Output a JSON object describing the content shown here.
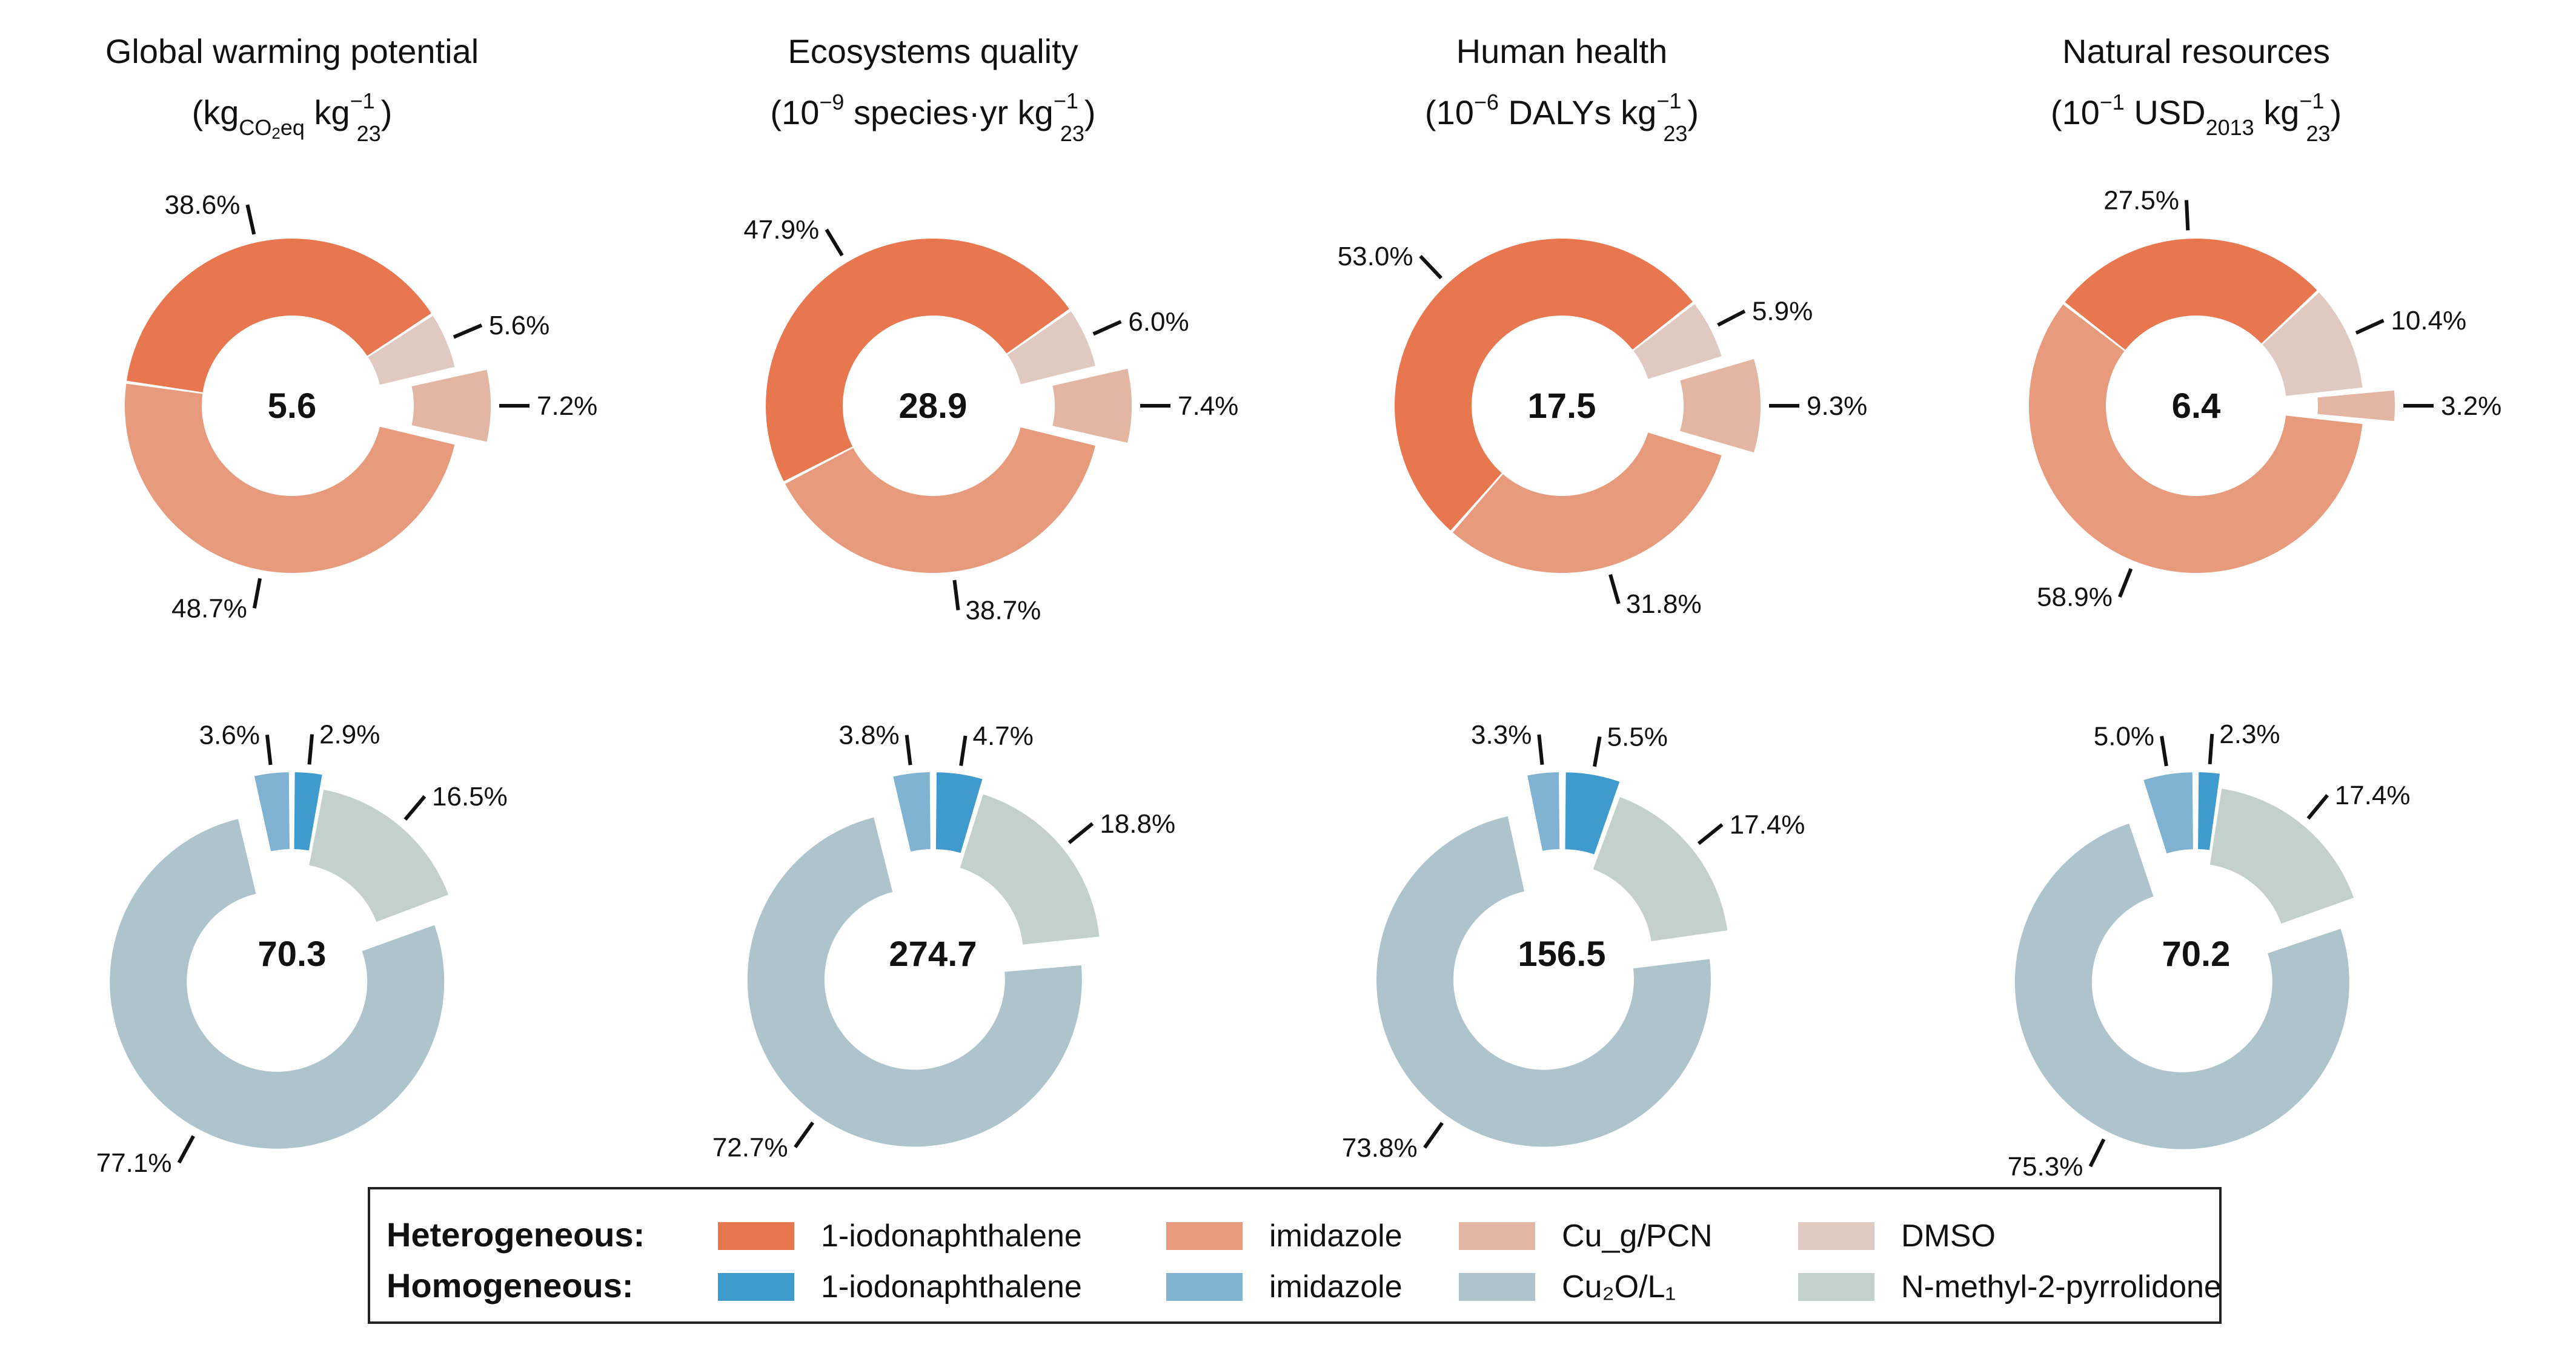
{
  "chart_data": [
    {
      "type": "donut",
      "title": "Global warming potential",
      "unit": {
        "pre": "(kg",
        "sub1": "CO",
        "sub1b": "2",
        "sub1c": "eq",
        "mid": " kg",
        "sup": "−1",
        "sub2": "23",
        "post": ")"
      },
      "panels": [
        {
          "group": "Heterogeneous",
          "total": "5.6",
          "slices": [
            {
              "name": "1-iodonaphthalene",
              "value": 38.6,
              "label": "38.6%"
            },
            {
              "name": "imidazole",
              "value": 48.7,
              "label": "48.7%"
            },
            {
              "name": "Cug/PCN",
              "value": 7.2,
              "label": "7.2%",
              "exploded": true
            },
            {
              "name": "DMSO",
              "value": 5.6,
              "label": "5.6%"
            }
          ]
        },
        {
          "group": "Homogeneous",
          "total": "70.3",
          "slices": [
            {
              "name": "1-iodonaphthalene",
              "value": 2.9,
              "label": "2.9%"
            },
            {
              "name": "imidazole",
              "value": 3.6,
              "label": "3.6%"
            },
            {
              "name": "Cu2O/L1",
              "value": 77.1,
              "label": "77.1%",
              "exploded": true
            },
            {
              "name": "N-methyl-2-pyrrolidone",
              "value": 16.5,
              "label": "16.5%"
            }
          ]
        }
      ]
    },
    {
      "type": "donut",
      "title": "Ecosystems quality",
      "unit": {
        "pre": "(10",
        "presup": "−9",
        "mid": " species·yr kg",
        "sup": "−1",
        "sub2": "23",
        "post": ")"
      },
      "panels": [
        {
          "group": "Heterogeneous",
          "total": "28.9",
          "slices": [
            {
              "name": "1-iodonaphthalene",
              "value": 47.9,
              "label": "47.9%"
            },
            {
              "name": "imidazole",
              "value": 38.7,
              "label": "38.7%"
            },
            {
              "name": "Cug/PCN",
              "value": 7.4,
              "label": "7.4%",
              "exploded": true
            },
            {
              "name": "DMSO",
              "value": 6.0,
              "label": "6.0%"
            }
          ]
        },
        {
          "group": "Homogeneous",
          "total": "274.7",
          "slices": [
            {
              "name": "1-iodonaphthalene",
              "value": 4.7,
              "label": "4.7%"
            },
            {
              "name": "imidazole",
              "value": 3.8,
              "label": "3.8%"
            },
            {
              "name": "Cu2O/L1",
              "value": 72.7,
              "label": "72.7%",
              "exploded": true
            },
            {
              "name": "N-methyl-2-pyrrolidone",
              "value": 18.8,
              "label": "18.8%"
            }
          ]
        }
      ]
    },
    {
      "type": "donut",
      "title": "Human health",
      "unit": {
        "pre": "(10",
        "presup": "−6",
        "mid": " DALYs kg",
        "sup": "−1",
        "sub2": "23",
        "post": ")"
      },
      "panels": [
        {
          "group": "Heterogeneous",
          "total": "17.5",
          "slices": [
            {
              "name": "1-iodonaphthalene",
              "value": 53.0,
              "label": "53.0%"
            },
            {
              "name": "imidazole",
              "value": 31.8,
              "label": "31.8%"
            },
            {
              "name": "Cug/PCN",
              "value": 9.3,
              "label": "9.3%",
              "exploded": true
            },
            {
              "name": "DMSO",
              "value": 5.9,
              "label": "5.9%"
            }
          ]
        },
        {
          "group": "Homogeneous",
          "total": "156.5",
          "slices": [
            {
              "name": "1-iodonaphthalene",
              "value": 5.5,
              "label": "5.5%"
            },
            {
              "name": "imidazole",
              "value": 3.3,
              "label": "3.3%"
            },
            {
              "name": "Cu2O/L1",
              "value": 73.8,
              "label": "73.8%",
              "exploded": true
            },
            {
              "name": "N-methyl-2-pyrrolidone",
              "value": 17.4,
              "label": "17.4%"
            }
          ]
        }
      ]
    },
    {
      "type": "donut",
      "title": "Natural resources",
      "unit": {
        "pre": "(10",
        "presup": "−1",
        "mid": " USD",
        "midsub": "2013",
        "mid2": " kg",
        "sup": "−1",
        "sub2": "23",
        "post": ")"
      },
      "panels": [
        {
          "group": "Heterogeneous",
          "total": "6.4",
          "slices": [
            {
              "name": "1-iodonaphthalene",
              "value": 27.5,
              "label": "27.5%"
            },
            {
              "name": "imidazole",
              "value": 58.9,
              "label": "58.9%"
            },
            {
              "name": "Cug/PCN",
              "value": 3.2,
              "label": "3.2%",
              "exploded": true
            },
            {
              "name": "DMSO",
              "value": 10.4,
              "label": "10.4%"
            }
          ]
        },
        {
          "group": "Homogeneous",
          "total": "70.2",
          "slices": [
            {
              "name": "1-iodonaphthalene",
              "value": 2.3,
              "label": "2.3%"
            },
            {
              "name": "imidazole",
              "value": 5.0,
              "label": "5.0%"
            },
            {
              "name": "Cu2O/L1",
              "value": 75.3,
              "label": "75.3%",
              "exploded": true
            },
            {
              "name": "N-methyl-2-pyrrolidone",
              "value": 17.4,
              "label": "17.4%"
            }
          ]
        }
      ]
    }
  ],
  "colors": {
    "Heterogeneous": [
      "#e8764f",
      "#e89a7c",
      "#e3b6a3",
      "#dfc9c1"
    ],
    "Homogeneous": [
      "#3f9bce",
      "#7fb3d1",
      "#aec4cc",
      "#c3d0cc"
    ]
  },
  "legend": {
    "rows": [
      {
        "header": "Heterogeneous:",
        "items": [
          "1-iodonaphthalene",
          "imidazole",
          "Cu_g/PCN",
          "DMSO"
        ]
      },
      {
        "header": "Homogeneous:",
        "items": [
          "1-iodonaphthalene",
          "imidazole",
          "Cu₂O/L₁",
          "N-methyl-2-pyrrolidone"
        ]
      }
    ]
  }
}
